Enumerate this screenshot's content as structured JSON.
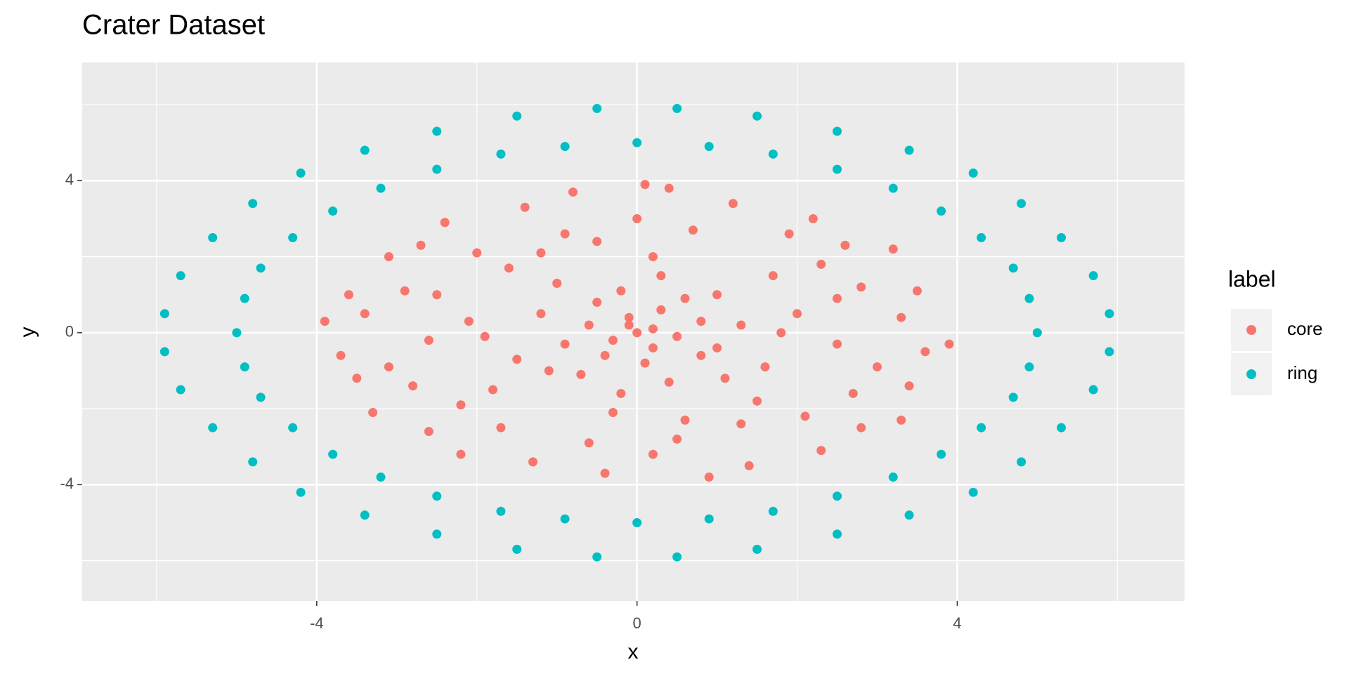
{
  "chart_data": {
    "type": "scatter",
    "title": "Crater Dataset",
    "x_label": "x",
    "y_label": "y",
    "legend_title": "label",
    "xlim": [
      -6.93,
      6.84
    ],
    "ylim": [
      -7.06,
      7.11
    ],
    "xticks": [
      -4,
      0,
      4
    ],
    "yticks": [
      -4,
      0,
      4
    ],
    "xminor": [
      -6,
      -2,
      2,
      6
    ],
    "yminor": [
      -6,
      -2,
      2,
      6
    ],
    "grid": true,
    "legend": "right",
    "series": [
      {
        "name": "core",
        "color": "#F8766D",
        "x": [
          0,
          0.2,
          -0.3,
          0.5,
          -0.1,
          0.3,
          -0.6,
          0.8,
          -0.4,
          0.1,
          1.0,
          -0.9,
          0.6,
          -0.2,
          1.3,
          -1.2,
          0.4,
          -0.7,
          1.6,
          -1.5,
          2.0,
          -2.1,
          0.2,
          -0.3,
          1.7,
          -1.6,
          1.5,
          -1.8,
          2.5,
          -2.6,
          0.7,
          -0.9,
          0.5,
          -0.6,
          2.8,
          -2.9,
          2.7,
          -2.8,
          3.3,
          -3.4,
          3.6,
          -3.7,
          3.9,
          -3.9,
          0.1,
          0.4,
          -0.8,
          0.9,
          -0.4,
          2.2,
          -2.4,
          2.3,
          -2.2,
          3.2,
          -3.1,
          3.3,
          -3.3,
          1.2,
          -1.4,
          1.4,
          -1.3,
          1.0,
          -1.1,
          1.1,
          -1.0,
          2.3,
          -2.2,
          2.1,
          -2.0,
          0.3,
          -0.2,
          1.8,
          -1.9,
          3.0,
          -3.1,
          2.5,
          -2.5,
          0.6,
          -0.5,
          1.9,
          -1.7,
          3.5,
          -3.6,
          3.4,
          -3.5,
          2.6,
          -2.7,
          2.8,
          -2.6,
          0.0,
          0.2,
          -1.2,
          1.3,
          0.8,
          -0.5,
          0.2,
          -0.1
        ],
        "values": [
          0,
          0.1,
          -0.2,
          -0.1,
          0.4,
          0.6,
          0.2,
          0.3,
          -0.6,
          -0.8,
          -0.4,
          -0.3,
          0.9,
          1.1,
          0.2,
          0.5,
          -1.3,
          -1.1,
          -0.9,
          -0.7,
          0.5,
          0.3,
          2.0,
          -2.1,
          1.5,
          1.7,
          -1.8,
          -1.5,
          -0.3,
          -0.2,
          2.7,
          2.6,
          -2.8,
          -2.9,
          1.2,
          1.1,
          -1.6,
          -1.4,
          0.4,
          0.5,
          -0.5,
          -0.6,
          -0.3,
          0.3,
          3.9,
          3.8,
          3.7,
          -3.8,
          -3.7,
          3.0,
          2.9,
          -3.1,
          -3.2,
          2.2,
          2.0,
          -2.3,
          -2.1,
          3.4,
          3.3,
          -3.5,
          -3.4,
          1.0,
          -1.0,
          -1.2,
          1.3,
          1.8,
          -1.9,
          -2.2,
          2.1,
          1.5,
          -1.6,
          0.0,
          -0.1,
          -0.9,
          -0.9,
          0.9,
          1.0,
          -2.3,
          2.4,
          2.6,
          -2.5,
          1.1,
          1.0,
          -1.4,
          -1.2,
          2.3,
          2.3,
          -2.5,
          -2.6,
          3.0,
          -3.2,
          2.1,
          -2.4,
          -0.6,
          0.8,
          -0.4,
          0.2
        ]
      },
      {
        "name": "ring",
        "color": "#00BFC4",
        "x": [
          5.0,
          4.9,
          4.7,
          4.3,
          3.8,
          3.2,
          2.5,
          1.7,
          0.9,
          0,
          -0.9,
          -1.7,
          -2.5,
          -3.2,
          -3.8,
          -4.3,
          -4.7,
          -4.9,
          -5.0,
          -4.9,
          -4.7,
          -4.3,
          -3.8,
          -3.2,
          -2.5,
          -1.7,
          -0.9,
          0,
          0.9,
          1.7,
          2.5,
          3.2,
          3.8,
          4.3,
          4.7,
          4.9,
          5.9,
          5.7,
          5.3,
          4.8,
          4.2,
          3.4,
          2.5,
          1.5,
          0.5,
          -0.5,
          -1.5,
          -2.5,
          -3.4,
          -4.2,
          -4.8,
          -5.3,
          -5.7,
          -5.9,
          -5.9,
          -5.7,
          -5.3,
          -4.8,
          -4.2,
          -3.4,
          -2.5,
          -1.5,
          -0.5,
          0.5,
          1.5,
          2.5,
          3.4,
          4.2,
          4.8,
          5.3,
          5.7,
          5.9
        ],
        "values": [
          0,
          0.9,
          1.7,
          2.5,
          3.2,
          3.8,
          4.3,
          4.7,
          4.9,
          5.0,
          4.9,
          4.7,
          4.3,
          3.8,
          3.2,
          2.5,
          1.7,
          0.9,
          0,
          -0.9,
          -1.7,
          -2.5,
          -3.2,
          -3.8,
          -4.3,
          -4.7,
          -4.9,
          -5.0,
          -4.9,
          -4.7,
          -4.3,
          -3.8,
          -3.2,
          -2.5,
          -1.7,
          -0.9,
          0.5,
          1.5,
          2.5,
          3.4,
          4.2,
          4.8,
          5.3,
          5.7,
          5.9,
          5.9,
          5.7,
          5.3,
          4.8,
          4.2,
          3.4,
          2.5,
          1.5,
          0.5,
          -0.5,
          -1.5,
          -2.5,
          -3.4,
          -4.2,
          -4.8,
          -5.3,
          -5.7,
          -5.9,
          -5.9,
          -5.7,
          -5.3,
          -4.8,
          -4.2,
          -3.4,
          -2.5,
          -1.5,
          -0.5
        ]
      }
    ]
  }
}
